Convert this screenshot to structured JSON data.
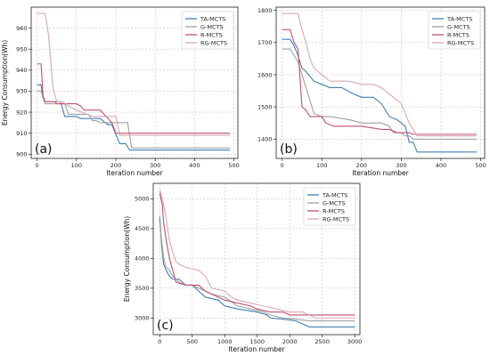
{
  "colors": {
    "TA-MCTS": "#3f7fb5",
    "G-MCTS": "#a0a0a0",
    "R-MCTS": "#c0506e",
    "RG-MCTS": "#d8a8b4"
  },
  "chart_data": [
    {
      "type": "line",
      "panel_label": "(a)",
      "xlabel": "Iteration number",
      "ylabel": "Energy Consumption(Wh)",
      "xlim": [
        -15,
        510
      ],
      "ylim": [
        898,
        970
      ],
      "xticks": [
        0,
        100,
        200,
        300,
        400,
        500
      ],
      "yticks": [
        900,
        910,
        920,
        930,
        940,
        950,
        960
      ],
      "grid": true,
      "legend": "top-right",
      "series": [
        {
          "name": "TA-MCTS",
          "x": [
            0,
            10,
            15,
            20,
            60,
            70,
            100,
            110,
            160,
            180,
            190,
            210,
            225,
            235,
            490
          ],
          "y": [
            933,
            933,
            927,
            925,
            925,
            918,
            918,
            917,
            917,
            914,
            914,
            905,
            905,
            902,
            902
          ]
        },
        {
          "name": "G-MCTS",
          "x": [
            0,
            10,
            15,
            20,
            70,
            80,
            130,
            140,
            150,
            160,
            230,
            240,
            490
          ],
          "y": [
            930,
            930,
            927,
            924,
            924,
            919,
            919,
            916,
            916,
            915,
            915,
            903,
            903
          ]
        },
        {
          "name": "R-MCTS",
          "x": [
            0,
            10,
            15,
            20,
            45,
            50,
            100,
            110,
            120,
            160,
            190,
            200,
            490
          ],
          "y": [
            943,
            943,
            928,
            925,
            925,
            924,
            924,
            923,
            921,
            921,
            915,
            910,
            910
          ]
        },
        {
          "name": "RG-MCTS",
          "x": [
            0,
            20,
            25,
            30,
            40,
            50,
            65,
            80,
            100,
            140,
            200,
            210,
            490
          ],
          "y": [
            967,
            967,
            962,
            955,
            932,
            925,
            925,
            923,
            921,
            918,
            918,
            909,
            909
          ]
        }
      ]
    },
    {
      "type": "line",
      "panel_label": "(b)",
      "xlabel": "Iteration number",
      "ylabel": "",
      "xlim": [
        -15,
        510
      ],
      "ylim": [
        1340,
        1810
      ],
      "xticks": [
        0,
        100,
        200,
        300,
        400,
        500
      ],
      "yticks": [
        1400,
        1500,
        1600,
        1700,
        1800
      ],
      "grid": true,
      "legend": "top-right",
      "series": [
        {
          "name": "TA-MCTS",
          "x": [
            0,
            20,
            30,
            40,
            50,
            60,
            80,
            100,
            120,
            150,
            180,
            200,
            230,
            250,
            270,
            290,
            310,
            320,
            330,
            340,
            490
          ],
          "y": [
            1710,
            1710,
            1690,
            1660,
            1620,
            1610,
            1580,
            1570,
            1560,
            1560,
            1540,
            1530,
            1530,
            1510,
            1470,
            1460,
            1440,
            1390,
            1390,
            1360,
            1360
          ]
        },
        {
          "name": "G-MCTS",
          "x": [
            0,
            20,
            30,
            40,
            50,
            60,
            70,
            80,
            100,
            120,
            170,
            200,
            250,
            270,
            280,
            300,
            310,
            320,
            330,
            490
          ],
          "y": [
            1680,
            1680,
            1660,
            1640,
            1600,
            1560,
            1520,
            1480,
            1470,
            1470,
            1460,
            1450,
            1450,
            1440,
            1420,
            1420,
            1410,
            1410,
            1400,
            1400
          ]
        },
        {
          "name": "R-MCTS",
          "x": [
            0,
            20,
            30,
            40,
            50,
            60,
            70,
            100,
            110,
            130,
            200,
            250,
            270,
            290,
            310,
            320,
            330,
            490
          ],
          "y": [
            1740,
            1740,
            1700,
            1680,
            1500,
            1490,
            1470,
            1470,
            1450,
            1440,
            1440,
            1430,
            1430,
            1420,
            1420,
            1420,
            1415,
            1415
          ]
        },
        {
          "name": "RG-MCTS",
          "x": [
            0,
            40,
            50,
            60,
            70,
            80,
            90,
            100,
            120,
            170,
            200,
            230,
            250,
            270,
            290,
            300,
            320,
            340,
            490
          ],
          "y": [
            1790,
            1790,
            1740,
            1700,
            1650,
            1620,
            1610,
            1600,
            1580,
            1580,
            1570,
            1570,
            1560,
            1540,
            1520,
            1510,
            1450,
            1410,
            1410
          ]
        }
      ]
    },
    {
      "type": "line",
      "panel_label": "(c)",
      "xlabel": "Iteration number",
      "ylabel": "Energy Consumption(Wh)",
      "xlim": [
        -100,
        3080
      ],
      "ylim": [
        2720,
        5260
      ],
      "xticks": [
        0,
        500,
        1000,
        1500,
        2000,
        2500,
        3000
      ],
      "yticks": [
        3000,
        3500,
        4000,
        4500,
        5000
      ],
      "grid": true,
      "legend": "top-right",
      "series": [
        {
          "name": "TA-MCTS",
          "x": [
            0,
            30,
            60,
            100,
            150,
            200,
            300,
            400,
            500,
            650,
            700,
            900,
            1000,
            1200,
            1500,
            1650,
            1700,
            1900,
            2100,
            2200,
            2300,
            3000
          ],
          "y": [
            4700,
            4200,
            3900,
            3800,
            3700,
            3650,
            3650,
            3550,
            3550,
            3400,
            3350,
            3300,
            3200,
            3150,
            3100,
            3050,
            3000,
            2980,
            2950,
            2900,
            2850,
            2850
          ]
        },
        {
          "name": "G-MCTS",
          "x": [
            0,
            30,
            60,
            100,
            150,
            200,
            300,
            400,
            500,
            600,
            800,
            1000,
            1200,
            1400,
            1600,
            1700,
            1900,
            2100,
            2300,
            3000
          ],
          "y": [
            4600,
            4300,
            4000,
            3850,
            3800,
            3700,
            3600,
            3550,
            3550,
            3500,
            3400,
            3350,
            3200,
            3150,
            3100,
            3050,
            3000,
            2980,
            2950,
            2950
          ]
        },
        {
          "name": "R-MCTS",
          "x": [
            0,
            40,
            60,
            100,
            150,
            200,
            250,
            400,
            600,
            700,
            900,
            1000,
            1200,
            1400,
            1500,
            1700,
            1900,
            2000,
            2200,
            3000
          ],
          "y": [
            5100,
            4900,
            4600,
            4300,
            4000,
            3800,
            3600,
            3550,
            3550,
            3450,
            3350,
            3300,
            3250,
            3200,
            3150,
            3100,
            3100,
            3050,
            3050,
            3050
          ]
        },
        {
          "name": "RG-MCTS",
          "x": [
            0,
            40,
            80,
            120,
            150,
            200,
            250,
            300,
            400,
            600,
            700,
            800,
            1000,
            1100,
            1200,
            1400,
            1600,
            1800,
            2000,
            2200,
            2400,
            3000
          ],
          "y": [
            5150,
            5000,
            4800,
            4500,
            4300,
            4100,
            3950,
            3900,
            3850,
            3800,
            3700,
            3500,
            3450,
            3350,
            3300,
            3250,
            3200,
            3150,
            3100,
            3100,
            3000,
            3000
          ]
        }
      ]
    }
  ]
}
